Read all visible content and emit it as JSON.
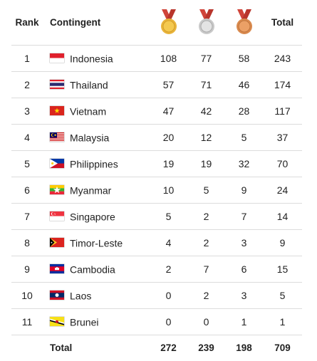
{
  "header": {
    "rank": "Rank",
    "contingent": "Contingent",
    "gold_icon": "gold-medal-icon",
    "silver_icon": "silver-medal-icon",
    "bronze_icon": "bronze-medal-icon",
    "total": "Total"
  },
  "colors": {
    "gold": "#e9b43a",
    "silver": "#c9c9c9",
    "bronze": "#d98a4e",
    "ribbon": "#d0443a"
  },
  "rows": [
    {
      "rank": "1",
      "country": "Indonesia",
      "flag": "flag-indonesia-icon",
      "gold": "108",
      "silver": "77",
      "bronze": "58",
      "total": "243"
    },
    {
      "rank": "2",
      "country": "Thailand",
      "flag": "flag-thailand-icon",
      "gold": "57",
      "silver": "71",
      "bronze": "46",
      "total": "174"
    },
    {
      "rank": "3",
      "country": "Vietnam",
      "flag": "flag-vietnam-icon",
      "gold": "47",
      "silver": "42",
      "bronze": "28",
      "total": "117"
    },
    {
      "rank": "4",
      "country": "Malaysia",
      "flag": "flag-malaysia-icon",
      "gold": "20",
      "silver": "12",
      "bronze": "5",
      "total": "37"
    },
    {
      "rank": "5",
      "country": "Philippines",
      "flag": "flag-philippines-icon",
      "gold": "19",
      "silver": "19",
      "bronze": "32",
      "total": "70"
    },
    {
      "rank": "6",
      "country": "Myanmar",
      "flag": "flag-myanmar-icon",
      "gold": "10",
      "silver": "5",
      "bronze": "9",
      "total": "24"
    },
    {
      "rank": "7",
      "country": "Singapore",
      "flag": "flag-singapore-icon",
      "gold": "5",
      "silver": "2",
      "bronze": "7",
      "total": "14"
    },
    {
      "rank": "8",
      "country": "Timor-Leste",
      "flag": "flag-timor-leste-icon",
      "gold": "4",
      "silver": "2",
      "bronze": "3",
      "total": "9"
    },
    {
      "rank": "9",
      "country": "Cambodia",
      "flag": "flag-cambodia-icon",
      "gold": "2",
      "silver": "7",
      "bronze": "6",
      "total": "15"
    },
    {
      "rank": "10",
      "country": "Laos",
      "flag": "flag-laos-icon",
      "gold": "0",
      "silver": "2",
      "bronze": "3",
      "total": "5"
    },
    {
      "rank": "11",
      "country": "Brunei",
      "flag": "flag-brunei-icon",
      "gold": "0",
      "silver": "0",
      "bronze": "1",
      "total": "1"
    }
  ],
  "footer": {
    "label": "Total",
    "gold": "272",
    "silver": "239",
    "bronze": "198",
    "total": "709"
  }
}
